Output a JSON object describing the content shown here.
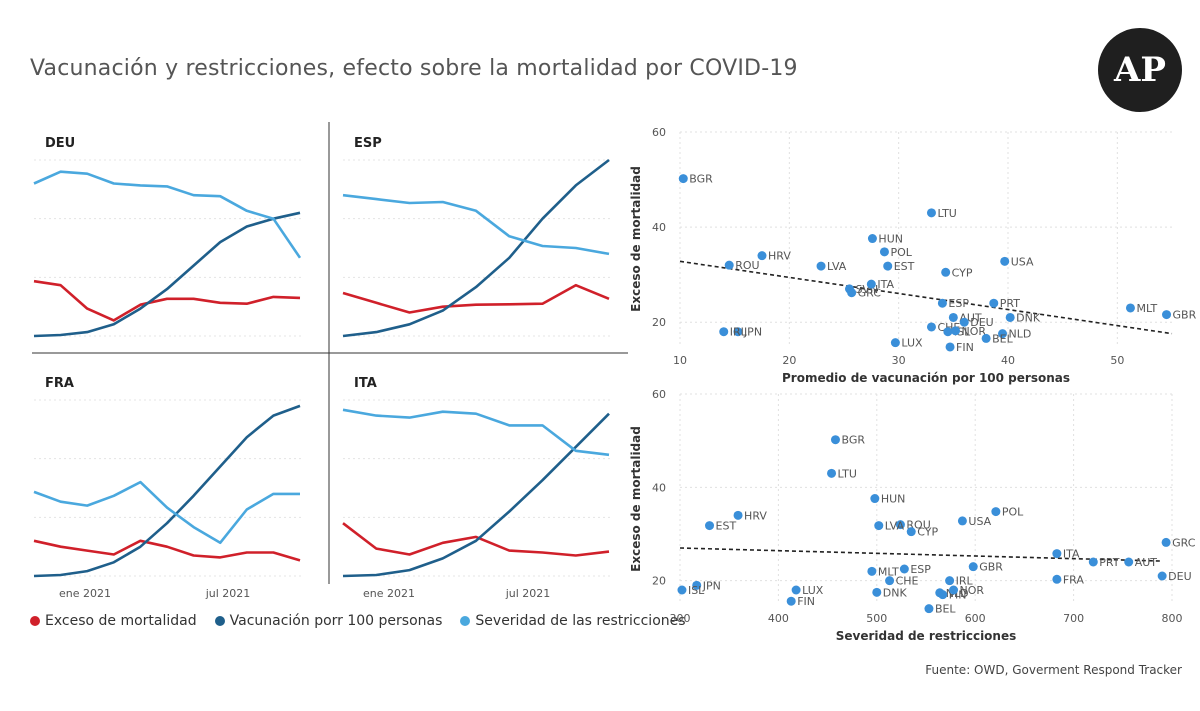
{
  "title": "Vacunación y restricciones, efecto sobre la mortalidad por COVID-19",
  "logo_text": "AP",
  "source": "Fuente: OWD, Goverment Respond Tracker",
  "colors": {
    "exceso": "#d0202a",
    "vacunacion": "#1f5f8b",
    "severidad": "#4aa8de",
    "scatter": "#3a8fd9"
  },
  "legend": [
    {
      "label": "Exceso de mortalidad",
      "color": "#d0202a"
    },
    {
      "label": "Vacunación porr 100 personas",
      "color": "#1f5f8b"
    },
    {
      "label": "Severidad de las restricciones",
      "color": "#4aa8de"
    }
  ],
  "x_ticks": [
    "ene 2021",
    "jul 2021"
  ],
  "chart_data": [
    {
      "type": "line",
      "title": "DEU",
      "series": [
        {
          "name": "Exceso de mortalidad",
          "values": [
            28,
            26,
            14,
            8,
            16,
            19,
            19,
            17,
            16.5,
            20,
            19.5
          ]
        },
        {
          "name": "Vacunación porr 100 personas",
          "values": [
            0,
            0.5,
            2,
            6,
            14,
            24,
            36,
            48,
            56,
            60,
            63
          ]
        },
        {
          "name": "Severidad de las restricciones",
          "values": [
            78,
            84,
            83,
            78,
            77,
            76.5,
            72,
            71.5,
            64,
            60,
            40
          ]
        }
      ]
    },
    {
      "type": "line",
      "title": "ESP",
      "series": [
        {
          "name": "Exceso de mortalidad",
          "values": [
            22,
            17,
            12,
            15,
            16,
            16.2,
            16.5,
            26,
            19
          ]
        },
        {
          "name": "Vacunación porr 100 personas",
          "values": [
            0,
            2,
            6,
            13,
            25,
            40,
            60,
            77,
            90
          ]
        },
        {
          "name": "Severidad de las restricciones",
          "values": [
            72,
            70,
            68,
            68.5,
            64,
            51,
            46,
            45,
            42
          ]
        }
      ]
    },
    {
      "type": "line",
      "title": "FRA",
      "series": [
        {
          "name": "Exceso de mortalidad",
          "values": [
            18,
            15,
            13,
            11,
            18,
            15,
            10.5,
            9.5,
            12,
            12,
            8
          ]
        },
        {
          "name": "Vacunación porr 100 personas",
          "values": [
            0,
            0.5,
            2.5,
            7,
            15,
            27,
            41,
            56,
            71,
            82,
            87
          ]
        },
        {
          "name": "Severidad de las restricciones",
          "values": [
            43,
            38,
            36,
            41,
            48,
            35,
            25,
            17,
            34,
            42,
            42
          ]
        }
      ]
    },
    {
      "type": "line",
      "title": "ITA",
      "series": [
        {
          "name": "Exceso de mortalidad",
          "values": [
            27,
            14,
            11,
            17,
            20,
            13,
            12,
            10.5,
            12.5
          ]
        },
        {
          "name": "Vacunación porr 100 personas",
          "values": [
            0,
            0.5,
            3,
            9,
            18,
            33,
            49,
            66,
            83
          ]
        },
        {
          "name": "Severidad de las restricciones",
          "values": [
            85,
            82,
            81,
            84,
            83,
            77,
            77,
            64,
            62
          ]
        }
      ]
    },
    {
      "type": "scatter",
      "xlabel": "Promedio de vacunación por 100 personas",
      "ylabel": "Exceso de mortalidad",
      "xlim": [
        10,
        55
      ],
      "ylim": [
        15,
        60
      ],
      "xticks": [
        10,
        20,
        30,
        40,
        50
      ],
      "yticks": [
        20,
        40,
        60
      ],
      "trend": [
        [
          10,
          32.8
        ],
        [
          55,
          17.6
        ]
      ],
      "points": [
        {
          "label": "BGR",
          "x": 10.3,
          "y": 50.2
        },
        {
          "label": "LTU",
          "x": 33.0,
          "y": 43.0
        },
        {
          "label": "HUN",
          "x": 27.6,
          "y": 37.6
        },
        {
          "label": "POL",
          "x": 28.7,
          "y": 34.8
        },
        {
          "label": "USA",
          "x": 39.7,
          "y": 32.8
        },
        {
          "label": "ROU",
          "x": 14.5,
          "y": 32.0
        },
        {
          "label": "HRV",
          "x": 17.5,
          "y": 34.0
        },
        {
          "label": "LVA",
          "x": 22.9,
          "y": 31.8
        },
        {
          "label": "EST",
          "x": 29.0,
          "y": 31.8
        },
        {
          "label": "CYP",
          "x": 34.3,
          "y": 30.5
        },
        {
          "label": "SVN",
          "x": 25.5,
          "y": 27.0
        },
        {
          "label": "GRC",
          "x": 25.7,
          "y": 26.2
        },
        {
          "label": "ITA",
          "x": 27.5,
          "y": 28.0
        },
        {
          "label": "ESP",
          "x": 34.0,
          "y": 24.0
        },
        {
          "label": "PRT",
          "x": 38.7,
          "y": 24.0
        },
        {
          "label": "AUT",
          "x": 35.0,
          "y": 21.0
        },
        {
          "label": "DEU",
          "x": 36.0,
          "y": 20.0
        },
        {
          "label": "DNK",
          "x": 40.2,
          "y": 21.0
        },
        {
          "label": "CHE",
          "x": 33.0,
          "y": 19.0
        },
        {
          "label": "ISL",
          "x": 34.5,
          "y": 18.0
        },
        {
          "label": "NOR",
          "x": 35.2,
          "y": 18.2
        },
        {
          "label": "NLD",
          "x": 39.5,
          "y": 17.6
        },
        {
          "label": "FIN",
          "x": 34.7,
          "y": 14.8
        },
        {
          "label": "BEL",
          "x": 38.0,
          "y": 16.6
        },
        {
          "label": "LUX",
          "x": 29.7,
          "y": 15.7
        },
        {
          "label": "JPN",
          "x": 15.3,
          "y": 18.0
        },
        {
          "label": "IRL",
          "x": 14.0,
          "y": 18.0
        },
        {
          "label": "MLT",
          "x": 51.2,
          "y": 23.0
        },
        {
          "label": "GBR",
          "x": 54.5,
          "y": 21.6
        }
      ]
    },
    {
      "type": "scatter",
      "xlabel": "Severidad de restricciones",
      "ylabel": "Exceso de mortalidad",
      "xlim": [
        300,
        800
      ],
      "ylim": [
        15,
        60
      ],
      "xticks": [
        300,
        400,
        500,
        600,
        700,
        800
      ],
      "yticks": [
        20,
        40,
        60
      ],
      "trend": [
        [
          300,
          27
        ],
        [
          790,
          24.2
        ]
      ],
      "points": [
        {
          "label": "BGR",
          "x": 458,
          "y": 50.2
        },
        {
          "label": "LTU",
          "x": 454,
          "y": 43.0
        },
        {
          "label": "HUN",
          "x": 498,
          "y": 37.6
        },
        {
          "label": "HRV",
          "x": 359,
          "y": 34.0
        },
        {
          "label": "POL",
          "x": 621,
          "y": 34.8
        },
        {
          "label": "USA",
          "x": 587,
          "y": 32.8
        },
        {
          "label": "ROU",
          "x": 524,
          "y": 32.0
        },
        {
          "label": "EST",
          "x": 330,
          "y": 31.8
        },
        {
          "label": "LVA",
          "x": 502,
          "y": 31.8
        },
        {
          "label": "CYP",
          "x": 535,
          "y": 30.5
        },
        {
          "label": "GRC",
          "x": 794,
          "y": 28.2
        },
        {
          "label": "ITA",
          "x": 683,
          "y": 25.8
        },
        {
          "label": "ESP",
          "x": 528,
          "y": 22.5
        },
        {
          "label": "GBR",
          "x": 598,
          "y": 23.0
        },
        {
          "label": "MLT",
          "x": 495,
          "y": 22.0
        },
        {
          "label": "PRT",
          "x": 720,
          "y": 24.0
        },
        {
          "label": "AUT",
          "x": 756,
          "y": 24.0
        },
        {
          "label": "DEU",
          "x": 790,
          "y": 21.0
        },
        {
          "label": "FRA",
          "x": 683,
          "y": 20.3
        },
        {
          "label": "IRL",
          "x": 574,
          "y": 20.0
        },
        {
          "label": "DNK",
          "x": 500,
          "y": 17.5
        },
        {
          "label": "CHE",
          "x": 513,
          "y": 20.0
        },
        {
          "label": "NLD",
          "x": 564,
          "y": 17.4
        },
        {
          "label": "FIN",
          "x": 567,
          "y": 17.0
        },
        {
          "label": "NOR",
          "x": 578,
          "y": 18.0
        },
        {
          "label": "BEL",
          "x": 553,
          "y": 14.0
        },
        {
          "label": "LUX",
          "x": 418,
          "y": 18.0
        },
        {
          "label": "FIN2",
          "x": 413,
          "y": 15.6
        },
        {
          "label": "JPN",
          "x": 317,
          "y": 19.0
        },
        {
          "label": "ISL",
          "x": 302,
          "y": 18.0
        }
      ]
    }
  ]
}
